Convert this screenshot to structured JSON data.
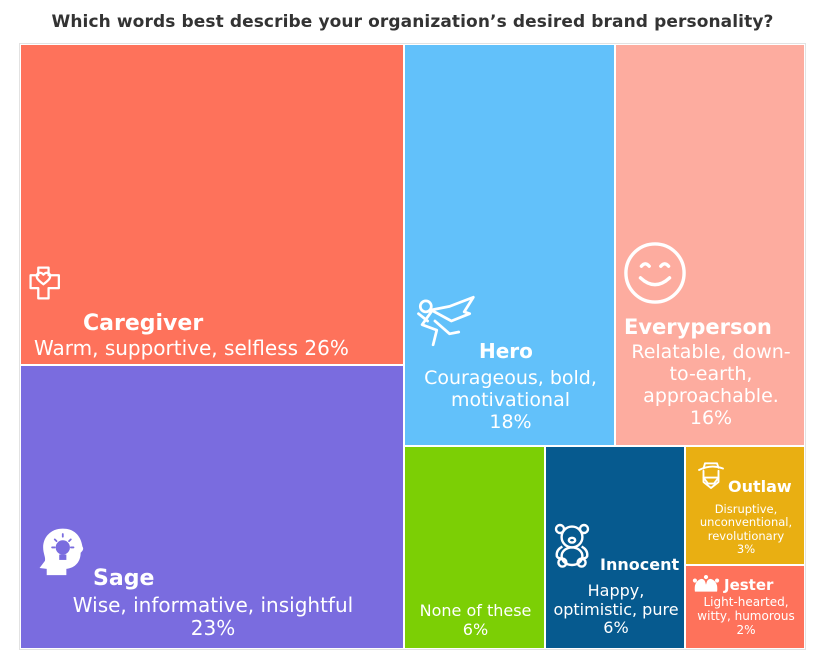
{
  "title": "Which words best describe your organization’s desired brand personality?",
  "chart_data": {
    "type": "treemap",
    "title": "Which words best describe your organization’s desired brand personality?",
    "unit": "%",
    "items": [
      {
        "name": "Caregiver",
        "description": "Warm, supportive, selfless",
        "value": 26,
        "label": "26%",
        "color": "#fe725b",
        "icon": "heart-cross-icon"
      },
      {
        "name": "Sage",
        "description": "Wise, informative, insightful",
        "value": 23,
        "label": "23%",
        "color": "#7a6cdf",
        "icon": "head-lightbulb-icon"
      },
      {
        "name": "Hero",
        "description": "Courageous, bold, motivational",
        "value": 18,
        "label": "18%",
        "color": "#62c1fa",
        "icon": "superhero-icon"
      },
      {
        "name": "Everyperson",
        "description": "Relatable, down-to-earth, approachable.",
        "value": 16,
        "label": "16%",
        "color": "#fdac9f",
        "icon": "smiley-face-icon"
      },
      {
        "name": "",
        "description": "None of these",
        "value": 6,
        "label": "6%",
        "color": "#7ccf05",
        "icon": ""
      },
      {
        "name": "Innocent",
        "description": "Happy, optimistic, pure",
        "value": 6,
        "label": "6%",
        "color": "#065a8f",
        "icon": "teddy-bear-icon"
      },
      {
        "name": "Outlaw",
        "description": "Disruptive, unconventional, revolutionary",
        "value": 3,
        "label": "3%",
        "color": "#e9af12",
        "icon": "outlaw-hat-icon"
      },
      {
        "name": "Jester",
        "description": "Light-hearted, witty, humorous",
        "value": 2,
        "label": "2%",
        "color": "#fe725b",
        "icon": "jester-hat-icon"
      }
    ]
  }
}
